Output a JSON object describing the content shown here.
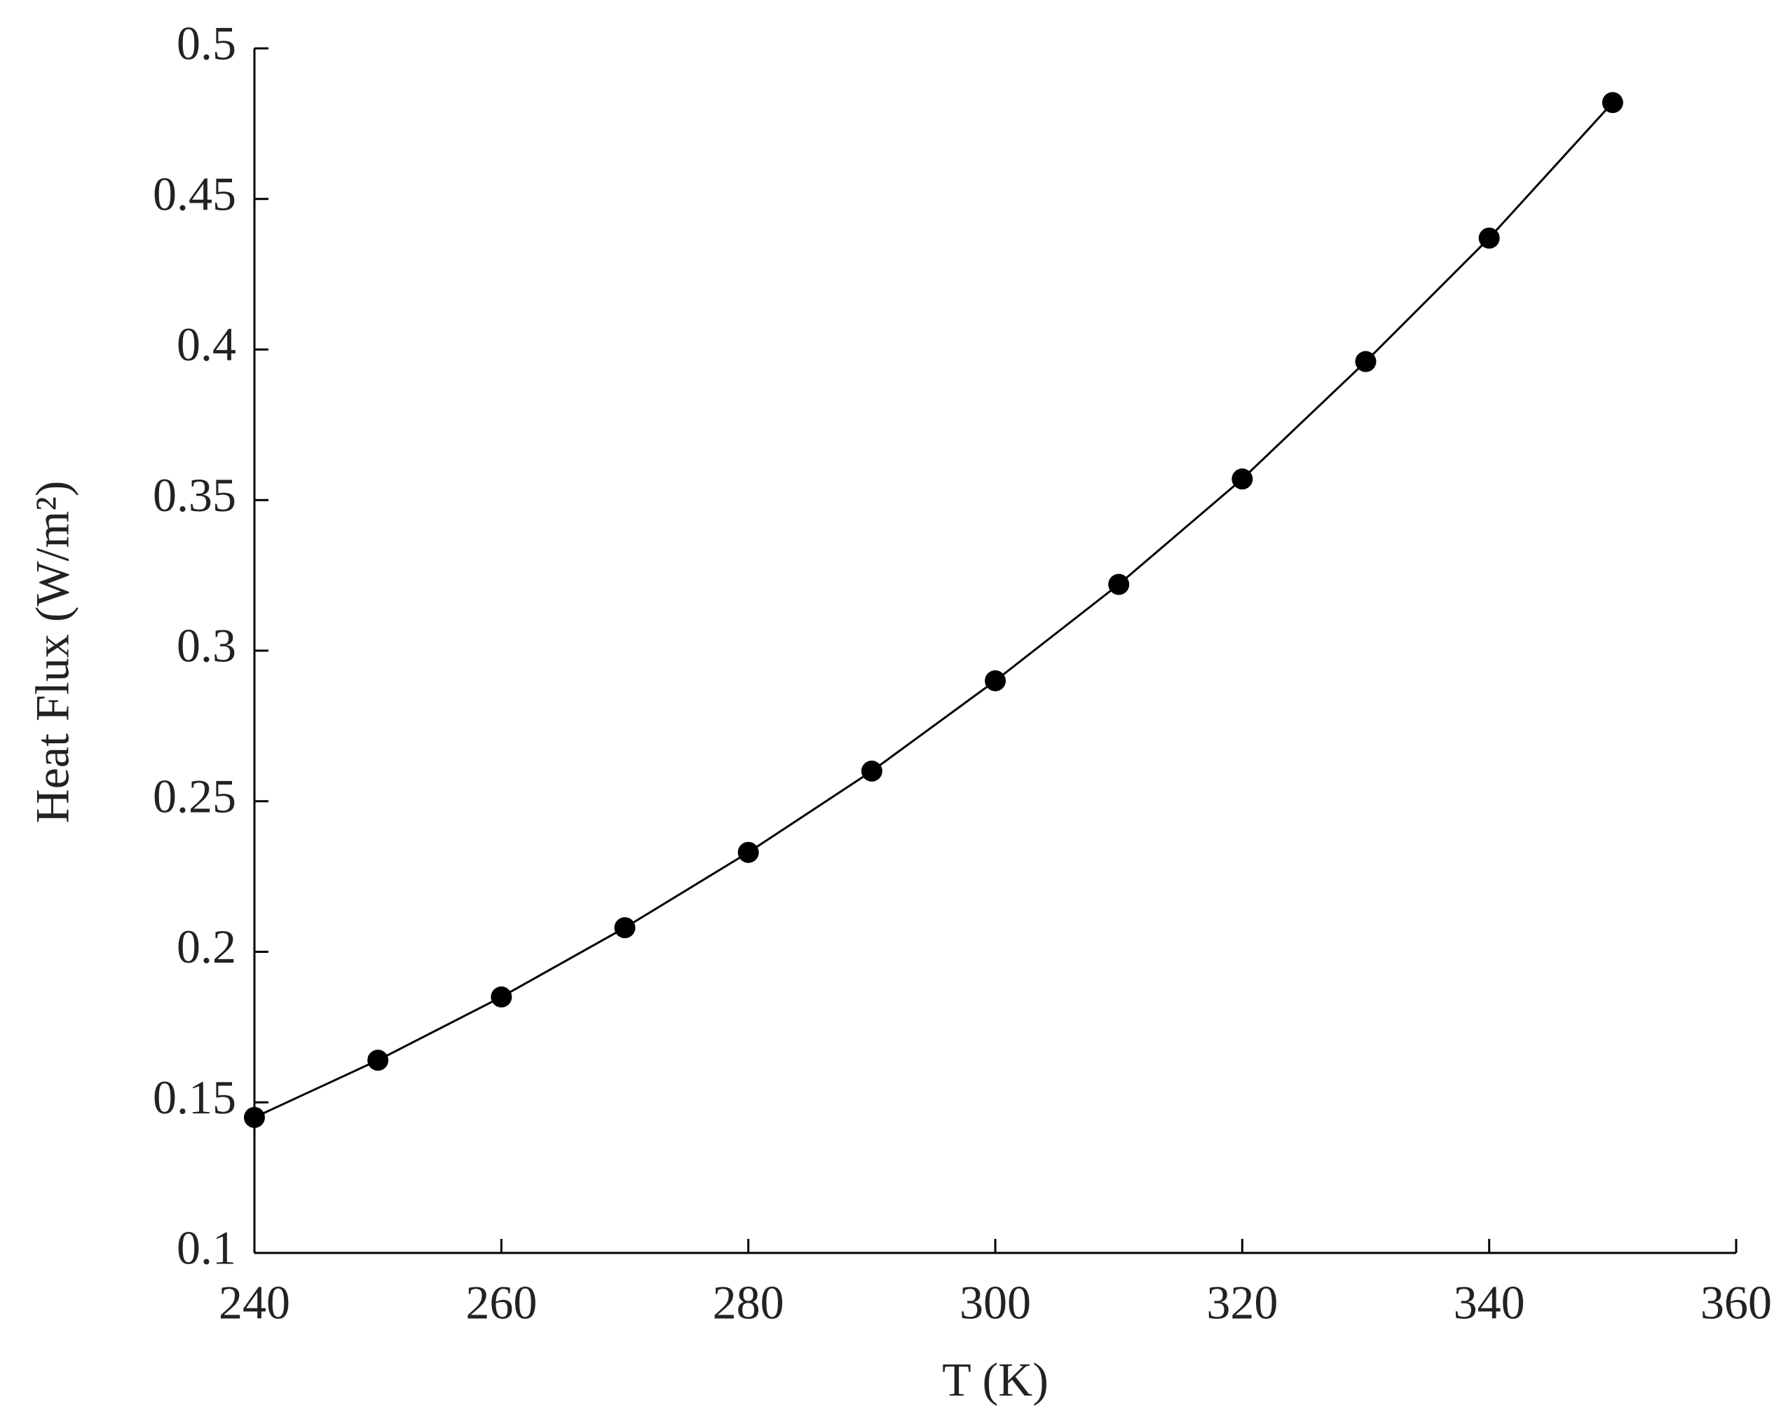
{
  "chart_data": {
    "type": "line",
    "x_label": "T (K)",
    "y_label": "Heat Flux (W/m²)",
    "x": [
      240,
      250,
      260,
      270,
      280,
      290,
      300,
      310,
      320,
      330,
      340,
      350
    ],
    "series": [
      {
        "values": [
          0.145,
          0.164,
          0.185,
          0.208,
          0.233,
          0.26,
          0.29,
          0.322,
          0.357,
          0.396,
          0.437,
          0.482
        ],
        "color": "#000000"
      }
    ],
    "xlim": [
      240,
      360
    ],
    "xticks": [
      240,
      260,
      280,
      300,
      320,
      340,
      360
    ],
    "ylim": [
      0.1,
      0.5
    ],
    "yticks": [
      0.1,
      0.15,
      0.2,
      0.25,
      0.3,
      0.35,
      0.4,
      0.45,
      0.5
    ],
    "markers": true,
    "grid": false
  }
}
